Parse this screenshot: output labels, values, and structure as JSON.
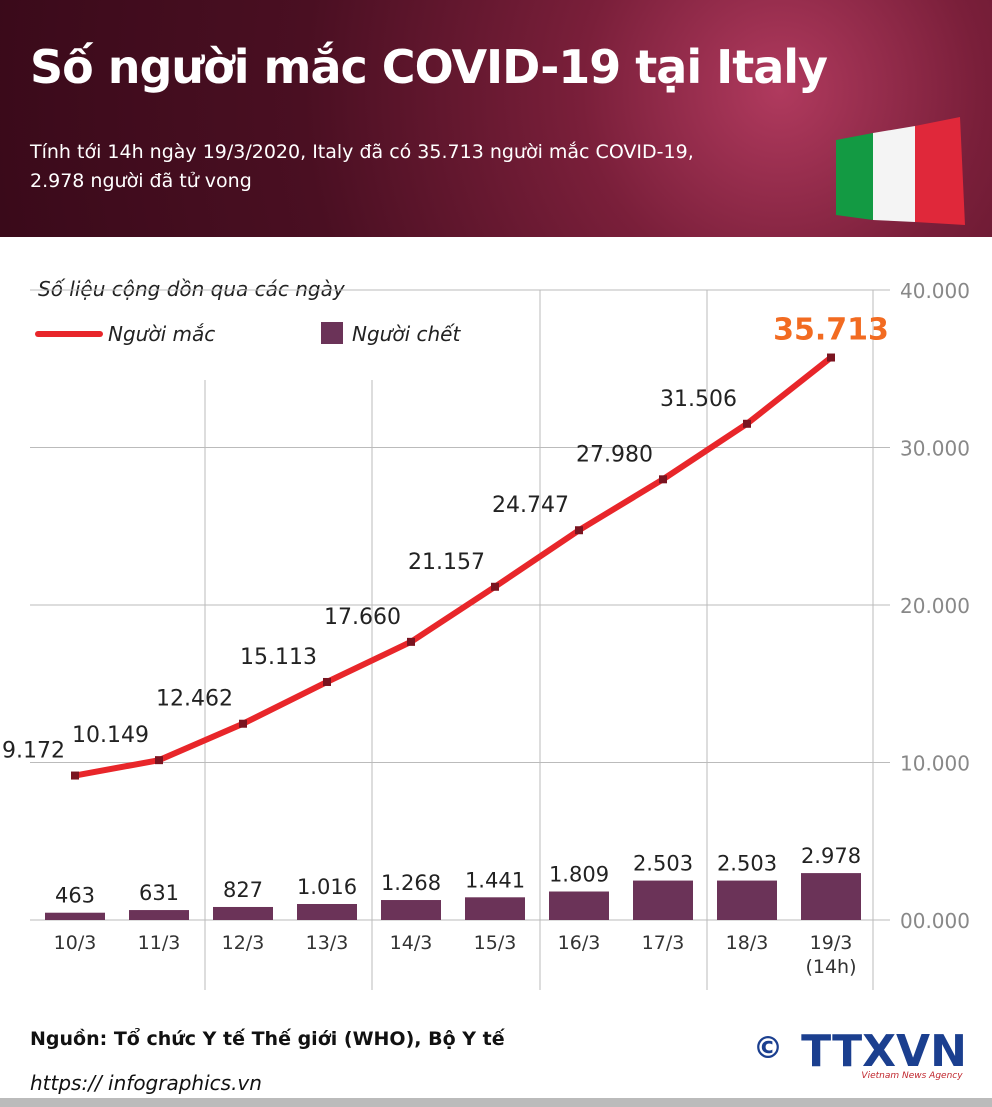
{
  "header": {
    "title": "Số người mắc COVID-19 tại Italy",
    "subtitle": "Tính tới 14h ngày 19/3/2020, Italy đã có 35.713 người mắc COVID-19,\n2.978 người đã  tử vong"
  },
  "chart_data": {
    "type": "line-bar",
    "subtitle": "Số liệu cộng dồn qua các ngày",
    "categories": [
      "10/3",
      "11/3",
      "12/3",
      "13/3",
      "14/3",
      "15/3",
      "16/3",
      "17/3",
      "18/3",
      "19/3\n(14h)"
    ],
    "series": [
      {
        "name": "Người mắc",
        "kind": "line",
        "color": "#e8262a",
        "values": [
          9172,
          10149,
          12462,
          15113,
          17660,
          21157,
          24747,
          27980,
          31506,
          35713
        ],
        "value_labels": [
          "9.172",
          "10.149",
          "12.462",
          "15.113",
          "17.660",
          "21.157",
          "24.747",
          "27.980",
          "31.506",
          "35.713"
        ]
      },
      {
        "name": "Người chết",
        "kind": "bar",
        "color": "#6b3358",
        "values": [
          463,
          631,
          827,
          1016,
          1268,
          1441,
          1809,
          2503,
          2503,
          2978
        ],
        "value_labels": [
          "463",
          "631",
          "827",
          "1.016",
          "1.268",
          "1.441",
          "1.809",
          "2.503",
          "2.503",
          "2.978"
        ]
      }
    ],
    "highlight_color": "#f26b21",
    "ylim": [
      0,
      40000
    ],
    "yticks": [
      {
        "value": 0,
        "label": "00.000"
      },
      {
        "value": 10000,
        "label": "10.000"
      },
      {
        "value": 20000,
        "label": "20.000"
      },
      {
        "value": 30000,
        "label": "30.000"
      },
      {
        "value": 40000,
        "label": "40.000"
      }
    ],
    "grid": true
  },
  "footer": {
    "source": "Nguồn: Tổ chức Y tế Thế giới (WHO), Bộ Y tế",
    "url": "https:// infographics.vn",
    "logo": "TTXVN",
    "agency": "Vietnam News Agency",
    "copyright": "©"
  }
}
